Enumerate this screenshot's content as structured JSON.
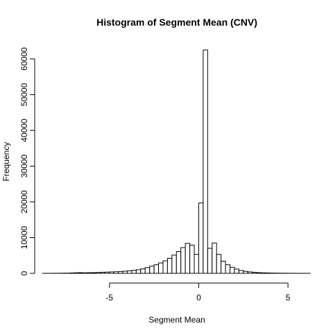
{
  "chart_data": {
    "type": "bar",
    "title": "Histogram of Segment Mean (CNV)",
    "xlabel": "Segment Mean",
    "ylabel": "Frequency",
    "xlim": [
      -8.8,
      6.2
    ],
    "ylim": [
      0,
      62500
    ],
    "bin_width": 0.25,
    "bin_start": -8.75,
    "x_ticks": [
      -5,
      0,
      5
    ],
    "x_tick_labels": [
      "-5",
      "0",
      "5"
    ],
    "y_ticks": [
      0,
      10000,
      20000,
      30000,
      40000,
      50000,
      60000
    ],
    "y_tick_labels": [
      "0",
      "10000",
      "20000",
      "30000",
      "40000",
      "50000",
      "60000"
    ],
    "values": [
      5,
      10,
      20,
      25,
      40,
      60,
      100,
      150,
      200,
      150,
      180,
      200,
      250,
      300,
      350,
      400,
      450,
      500,
      600,
      700,
      850,
      1000,
      1250,
      1600,
      2000,
      2400,
      2900,
      3500,
      4200,
      5100,
      6100,
      7200,
      8400,
      7900,
      5300,
      19700,
      62500,
      7000,
      8500,
      5300,
      3400,
      2400,
      1700,
      1200,
      800,
      550,
      400,
      280,
      200,
      150,
      110,
      80,
      60,
      40,
      30,
      20,
      15,
      10,
      8,
      5
    ]
  }
}
